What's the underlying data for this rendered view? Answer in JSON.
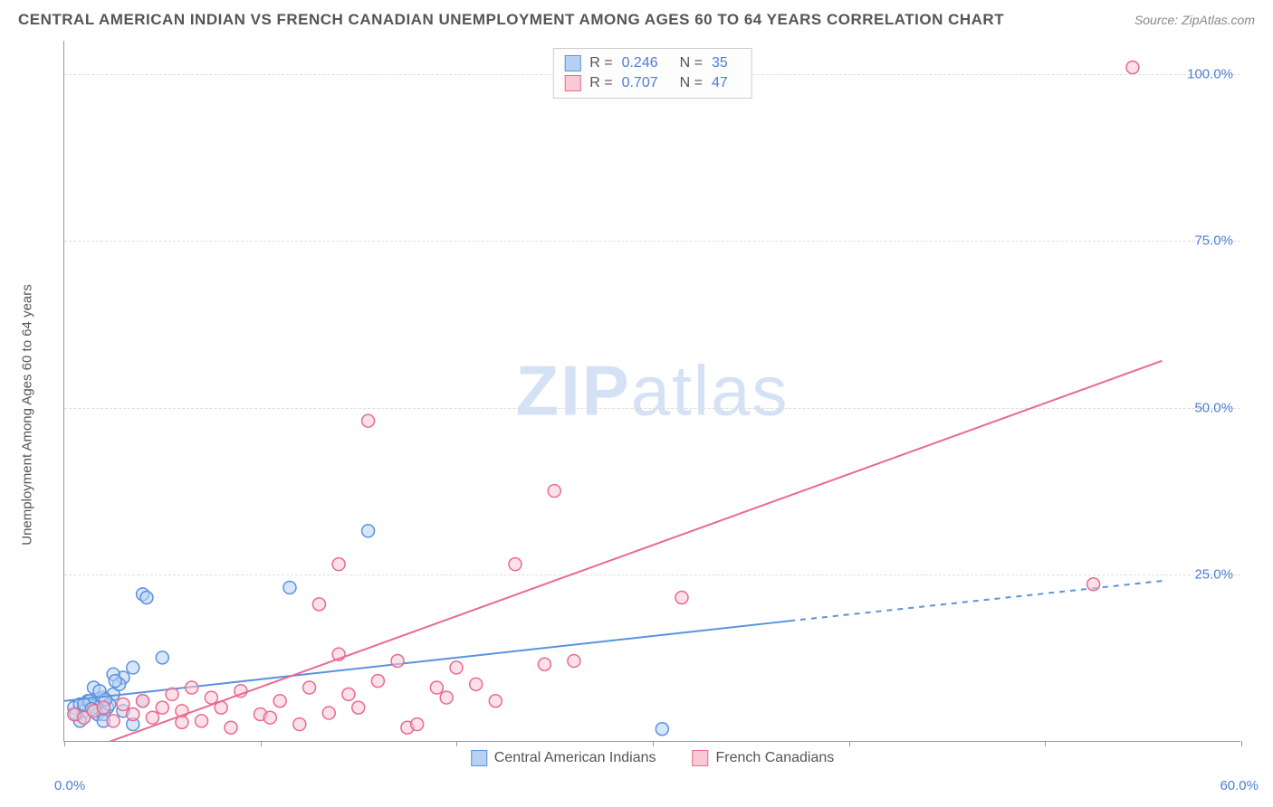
{
  "title": "CENTRAL AMERICAN INDIAN VS FRENCH CANADIAN UNEMPLOYMENT AMONG AGES 60 TO 64 YEARS CORRELATION CHART",
  "source": "Source: ZipAtlas.com",
  "watermark_bold": "ZIP",
  "watermark_light": "atlas",
  "y_axis_label": "Unemployment Among Ages 60 to 64 years",
  "chart": {
    "type": "scatter-correlation",
    "background_color": "#ffffff",
    "grid_color": "#dddddd",
    "axis_color": "#999999",
    "text_color": "#555555",
    "tick_label_color": "#4a7fd4",
    "xlim": [
      0,
      60
    ],
    "ylim": [
      0,
      105
    ],
    "x_ticks": [
      0,
      10,
      20,
      30,
      40,
      50,
      60
    ],
    "x_tick_labels": {
      "0": "0.0%",
      "60": "60.0%"
    },
    "y_ticks": [
      25,
      50,
      75,
      100
    ],
    "y_tick_labels": {
      "25": "25.0%",
      "50": "50.0%",
      "75": "75.0%",
      "100": "100.0%"
    },
    "marker_radius": 7,
    "marker_stroke_width": 1.5,
    "line_width": 2
  },
  "series": [
    {
      "name": "Central American Indians",
      "key": "cai",
      "R": "0.246",
      "N": "35",
      "fill_color": "#b7d1f4",
      "stroke_color": "#5a92e0",
      "points": [
        [
          0.5,
          5.0
        ],
        [
          0.8,
          5.5
        ],
        [
          1.0,
          4.5
        ],
        [
          1.2,
          6.0
        ],
        [
          1.5,
          5.2
        ],
        [
          1.7,
          4.0
        ],
        [
          2.0,
          6.5
        ],
        [
          2.2,
          5.0
        ],
        [
          2.5,
          7.0
        ],
        [
          1.0,
          3.5
        ],
        [
          3.0,
          9.5
        ],
        [
          3.5,
          11.0
        ],
        [
          4.0,
          22.0
        ],
        [
          4.2,
          21.5
        ],
        [
          1.5,
          8.0
        ],
        [
          2.0,
          4.0
        ],
        [
          2.5,
          10.0
        ],
        [
          0.8,
          3.0
        ],
        [
          1.3,
          6.0
        ],
        [
          5.0,
          12.5
        ],
        [
          3.0,
          4.5
        ],
        [
          2.0,
          3.0
        ],
        [
          1.8,
          7.5
        ],
        [
          2.3,
          5.5
        ],
        [
          11.5,
          23.0
        ],
        [
          15.5,
          31.5
        ],
        [
          2.8,
          8.5
        ],
        [
          3.5,
          2.5
        ],
        [
          4.0,
          6.0
        ],
        [
          1.0,
          5.5
        ],
        [
          0.6,
          4.0
        ],
        [
          1.4,
          4.8
        ],
        [
          2.1,
          6.2
        ],
        [
          30.5,
          1.8
        ],
        [
          2.6,
          9.0
        ]
      ],
      "trend": {
        "x1": 0,
        "y1": 6.0,
        "x2": 37,
        "y2": 18.0,
        "extend_x2": 56,
        "extend_y2": 24.0
      }
    },
    {
      "name": "French Canadians",
      "key": "fc",
      "R": "0.707",
      "N": "47",
      "fill_color": "#f9c9d5",
      "stroke_color": "#e86b8f",
      "points": [
        [
          0.5,
          4.0
        ],
        [
          1.0,
          3.5
        ],
        [
          1.5,
          4.5
        ],
        [
          2.0,
          5.0
        ],
        [
          2.5,
          3.0
        ],
        [
          3.0,
          5.5
        ],
        [
          3.5,
          4.0
        ],
        [
          4.0,
          6.0
        ],
        [
          4.5,
          3.5
        ],
        [
          5.0,
          5.0
        ],
        [
          5.5,
          7.0
        ],
        [
          6.0,
          4.5
        ],
        [
          6.5,
          8.0
        ],
        [
          7.0,
          3.0
        ],
        [
          7.5,
          6.5
        ],
        [
          8.0,
          5.0
        ],
        [
          9.0,
          7.5
        ],
        [
          10.0,
          4.0
        ],
        [
          11.0,
          6.0
        ],
        [
          12.0,
          2.5
        ],
        [
          12.5,
          8.0
        ],
        [
          13.0,
          20.5
        ],
        [
          14.0,
          13.0
        ],
        [
          14.0,
          26.5
        ],
        [
          14.5,
          7.0
        ],
        [
          15.0,
          5.0
        ],
        [
          15.5,
          48.0
        ],
        [
          16.0,
          9.0
        ],
        [
          17.0,
          12.0
        ],
        [
          17.5,
          2.0
        ],
        [
          18.0,
          2.5
        ],
        [
          19.0,
          8.0
        ],
        [
          19.5,
          6.5
        ],
        [
          20.0,
          11.0
        ],
        [
          21.0,
          8.5
        ],
        [
          22.0,
          6.0
        ],
        [
          23.0,
          26.5
        ],
        [
          24.5,
          11.5
        ],
        [
          25.0,
          37.5
        ],
        [
          26.0,
          12.0
        ],
        [
          31.5,
          21.5
        ],
        [
          8.5,
          2.0
        ],
        [
          10.5,
          3.5
        ],
        [
          6.0,
          2.8
        ],
        [
          13.5,
          4.2
        ],
        [
          52.5,
          23.5
        ],
        [
          54.5,
          101.0
        ]
      ],
      "trend": {
        "x1": 1.0,
        "y1": -1.5,
        "x2": 56,
        "y2": 57.0
      }
    }
  ],
  "stats_legend": {
    "R_label": "R =",
    "N_label": "N ="
  },
  "bottom_legend": [
    {
      "label": "Central American Indians",
      "fill": "#b7d1f4",
      "stroke": "#5a92e0"
    },
    {
      "label": "French Canadians",
      "fill": "#f9c9d5",
      "stroke": "#e86b8f"
    }
  ]
}
